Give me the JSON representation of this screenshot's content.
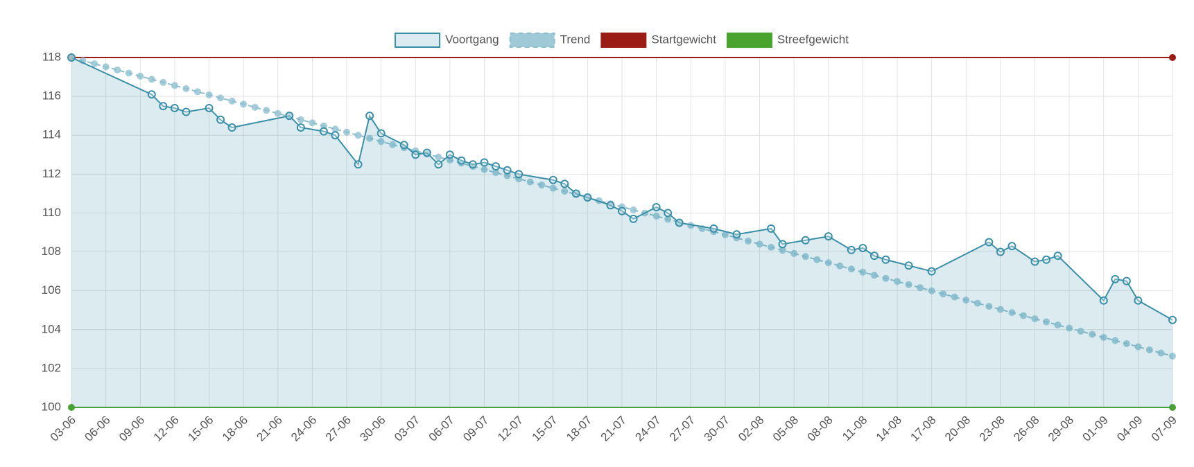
{
  "chart_data": {
    "type": "line",
    "xticks": [
      "03-06",
      "06-06",
      "09-06",
      "12-06",
      "15-06",
      "18-06",
      "21-06",
      "24-06",
      "27-06",
      "30-06",
      "03-07",
      "06-07",
      "09-07",
      "12-07",
      "15-07",
      "18-07",
      "21-07",
      "24-07",
      "27-07",
      "30-07",
      "02-08",
      "05-08",
      "08-08",
      "11-08",
      "14-08",
      "17-08",
      "20-08",
      "23-08",
      "26-08",
      "29-08",
      "01-09",
      "04-09",
      "07-09"
    ],
    "ylim": [
      100,
      118
    ],
    "yticks": [
      100,
      102,
      104,
      106,
      108,
      110,
      112,
      114,
      116,
      118
    ],
    "grid": true,
    "legend": "top",
    "series": [
      {
        "name": "Voortgang",
        "color": "#3a8fa8",
        "fill": true,
        "x": [
          "03-06",
          "10-06",
          "11-06",
          "12-06",
          "13-06",
          "15-06",
          "16-06",
          "17-06",
          "22-06",
          "23-06",
          "25-06",
          "26-06",
          "28-06",
          "29-06",
          "30-06",
          "02-07",
          "03-07",
          "04-07",
          "05-07",
          "06-07",
          "07-07",
          "08-07",
          "09-07",
          "10-07",
          "11-07",
          "12-07",
          "15-07",
          "16-07",
          "17-07",
          "18-07",
          "20-07",
          "21-07",
          "22-07",
          "24-07",
          "25-07",
          "26-07",
          "29-07",
          "31-07",
          "03-08",
          "04-08",
          "06-08",
          "08-08",
          "10-08",
          "11-08",
          "12-08",
          "13-08",
          "15-08",
          "17-08",
          "22-08",
          "23-08",
          "24-08",
          "26-08",
          "27-08",
          "28-08",
          "01-09",
          "02-09",
          "03-09",
          "04-09",
          "07-09"
        ],
        "values": [
          118,
          116.1,
          115.5,
          115.4,
          115.2,
          115.4,
          114.8,
          114.4,
          115,
          114.4,
          114.2,
          114,
          112.5,
          115,
          114.1,
          113.5,
          113,
          113.1,
          112.5,
          113,
          112.7,
          112.5,
          112.6,
          112.4,
          112.2,
          112,
          111.7,
          111.5,
          111,
          110.8,
          110.4,
          110.1,
          109.7,
          110.3,
          110,
          109.5,
          109.2,
          108.9,
          109.2,
          108.4,
          108.6,
          108.8,
          108.1,
          108.2,
          107.8,
          107.6,
          107.3,
          107,
          108.5,
          108,
          108.3,
          107.5,
          107.6,
          107.8,
          105.5,
          106.6,
          106.5,
          105.5,
          104.5
        ]
      },
      {
        "name": "Trend",
        "color": "#8dbfcf",
        "dash": true,
        "x": [
          "03-06",
          "04-06",
          "05-06",
          "06-06",
          "07-06",
          "08-06",
          "09-06",
          "10-06",
          "11-06",
          "12-06",
          "13-06",
          "14-06",
          "15-06",
          "16-06",
          "17-06",
          "18-06",
          "19-06",
          "20-06",
          "21-06",
          "22-06",
          "23-06",
          "24-06",
          "25-06",
          "26-06",
          "27-06",
          "28-06",
          "29-06",
          "30-06",
          "01-07",
          "02-07",
          "03-07",
          "04-07",
          "05-07",
          "06-07",
          "07-07",
          "08-07",
          "09-07",
          "10-07",
          "11-07",
          "12-07",
          "13-07",
          "14-07",
          "15-07",
          "16-07",
          "17-07",
          "18-07",
          "19-07",
          "20-07",
          "21-07",
          "22-07",
          "23-07",
          "24-07",
          "25-07",
          "26-07",
          "27-07",
          "28-07",
          "29-07",
          "30-07",
          "31-07",
          "01-08",
          "02-08",
          "03-08",
          "04-08",
          "05-08",
          "06-08",
          "07-08",
          "08-08",
          "09-08",
          "10-08",
          "11-08",
          "12-08",
          "13-08",
          "14-08",
          "15-08",
          "16-08",
          "17-08",
          "18-08",
          "19-08",
          "20-08",
          "21-08",
          "22-08",
          "23-08",
          "24-08",
          "25-08",
          "26-08",
          "27-08",
          "28-08",
          "29-08",
          "30-08",
          "31-08",
          "01-09",
          "02-09",
          "03-09",
          "04-09",
          "05-09",
          "06-09",
          "07-09"
        ],
        "values": [
          118,
          117.84,
          117.68,
          117.52,
          117.36,
          117.2,
          117.04,
          116.88,
          116.72,
          116.56,
          116.4,
          116.24,
          116.08,
          115.92,
          115.76,
          115.6,
          115.44,
          115.28,
          115.12,
          114.96,
          114.8,
          114.64,
          114.48,
          114.32,
          114.16,
          114,
          113.84,
          113.68,
          113.52,
          113.36,
          113.2,
          113.04,
          112.88,
          112.72,
          112.56,
          112.4,
          112.24,
          112.08,
          111.92,
          111.76,
          111.6,
          111.44,
          111.28,
          111.12,
          110.96,
          110.8,
          110.64,
          110.48,
          110.32,
          110.16,
          110,
          109.84,
          109.68,
          109.52,
          109.36,
          109.2,
          109.04,
          108.88,
          108.72,
          108.56,
          108.4,
          108.24,
          108.08,
          107.92,
          107.76,
          107.6,
          107.44,
          107.28,
          107.12,
          106.96,
          106.8,
          106.64,
          106.48,
          106.32,
          106.16,
          106,
          105.84,
          105.68,
          105.52,
          105.36,
          105.2,
          105.04,
          104.88,
          104.72,
          104.56,
          104.4,
          104.24,
          104.08,
          103.92,
          103.76,
          103.6,
          103.44,
          103.28,
          103.12,
          102.96,
          102.8,
          102.64
        ]
      },
      {
        "name": "Startgewicht",
        "color": "#9b1c14",
        "x": [
          "03-06",
          "07-09"
        ],
        "values": [
          118,
          118
        ]
      },
      {
        "name": "Streefgewicht",
        "color": "#4aa32e",
        "x": [
          "03-06",
          "07-09"
        ],
        "values": [
          100,
          100
        ]
      }
    ]
  }
}
